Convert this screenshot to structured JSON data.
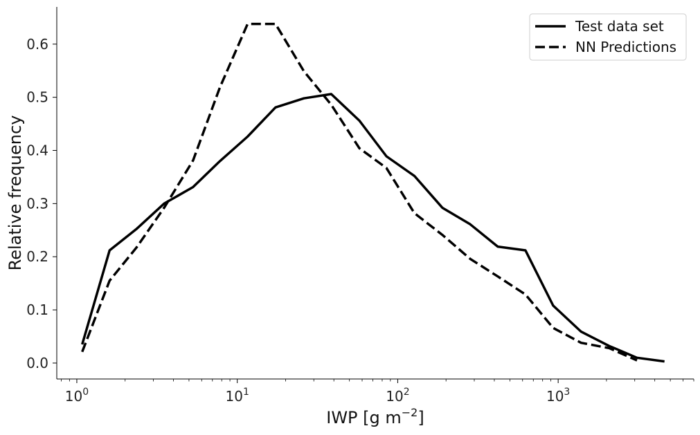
{
  "chart_data": {
    "type": "line",
    "xscale": "log",
    "xlim": [
      0.75,
      7000
    ],
    "ylim": [
      -0.03,
      0.67
    ],
    "xlabel": "IWP [g m",
    "xlabel_exponent": "−2",
    "xlabel_suffix": "]",
    "ylabel": "Relative frequency",
    "grid": false,
    "legend": "top-right",
    "x_ticks": [
      {
        "value": 1,
        "base": "10",
        "exp": "0"
      },
      {
        "value": 10,
        "base": "10",
        "exp": "1"
      },
      {
        "value": 100,
        "base": "10",
        "exp": "2"
      },
      {
        "value": 1000,
        "base": "10",
        "exp": "3"
      }
    ],
    "y_ticks": [
      0.0,
      0.1,
      0.2,
      0.3,
      0.4,
      0.5,
      0.6
    ],
    "y_tick_labels": [
      "0.0",
      "0.1",
      "0.2",
      "0.3",
      "0.4",
      "0.5",
      "0.6"
    ],
    "series": [
      {
        "name": "Test data set",
        "style": "solid",
        "color": "#000000",
        "x": [
          1.08,
          1.6,
          2.35,
          3.5,
          5.3,
          7.8,
          11.6,
          17.3,
          26,
          38.5,
          57.7,
          85,
          127,
          190,
          283,
          420,
          625,
          930,
          1390,
          2080,
          3100,
          4600
        ],
        "y": [
          0.035,
          0.212,
          0.252,
          0.3,
          0.331,
          0.38,
          0.426,
          0.481,
          0.498,
          0.506,
          0.456,
          0.389,
          0.352,
          0.292,
          0.261,
          0.219,
          0.212,
          0.108,
          0.059,
          0.032,
          0.01,
          0.003
        ]
      },
      {
        "name": "NN Predictions",
        "style": "dashed",
        "color": "#000000",
        "x": [
          1.08,
          1.6,
          2.35,
          3.5,
          5.3,
          7.8,
          11.6,
          17.3,
          26,
          38.5,
          57.7,
          85,
          127,
          190,
          283,
          420,
          625,
          930,
          1390,
          2080,
          3100
        ],
        "y": [
          0.021,
          0.155,
          0.217,
          0.292,
          0.381,
          0.519,
          0.638,
          0.638,
          0.549,
          0.486,
          0.404,
          0.367,
          0.282,
          0.241,
          0.196,
          0.163,
          0.129,
          0.066,
          0.038,
          0.028,
          0.005
        ]
      }
    ]
  }
}
